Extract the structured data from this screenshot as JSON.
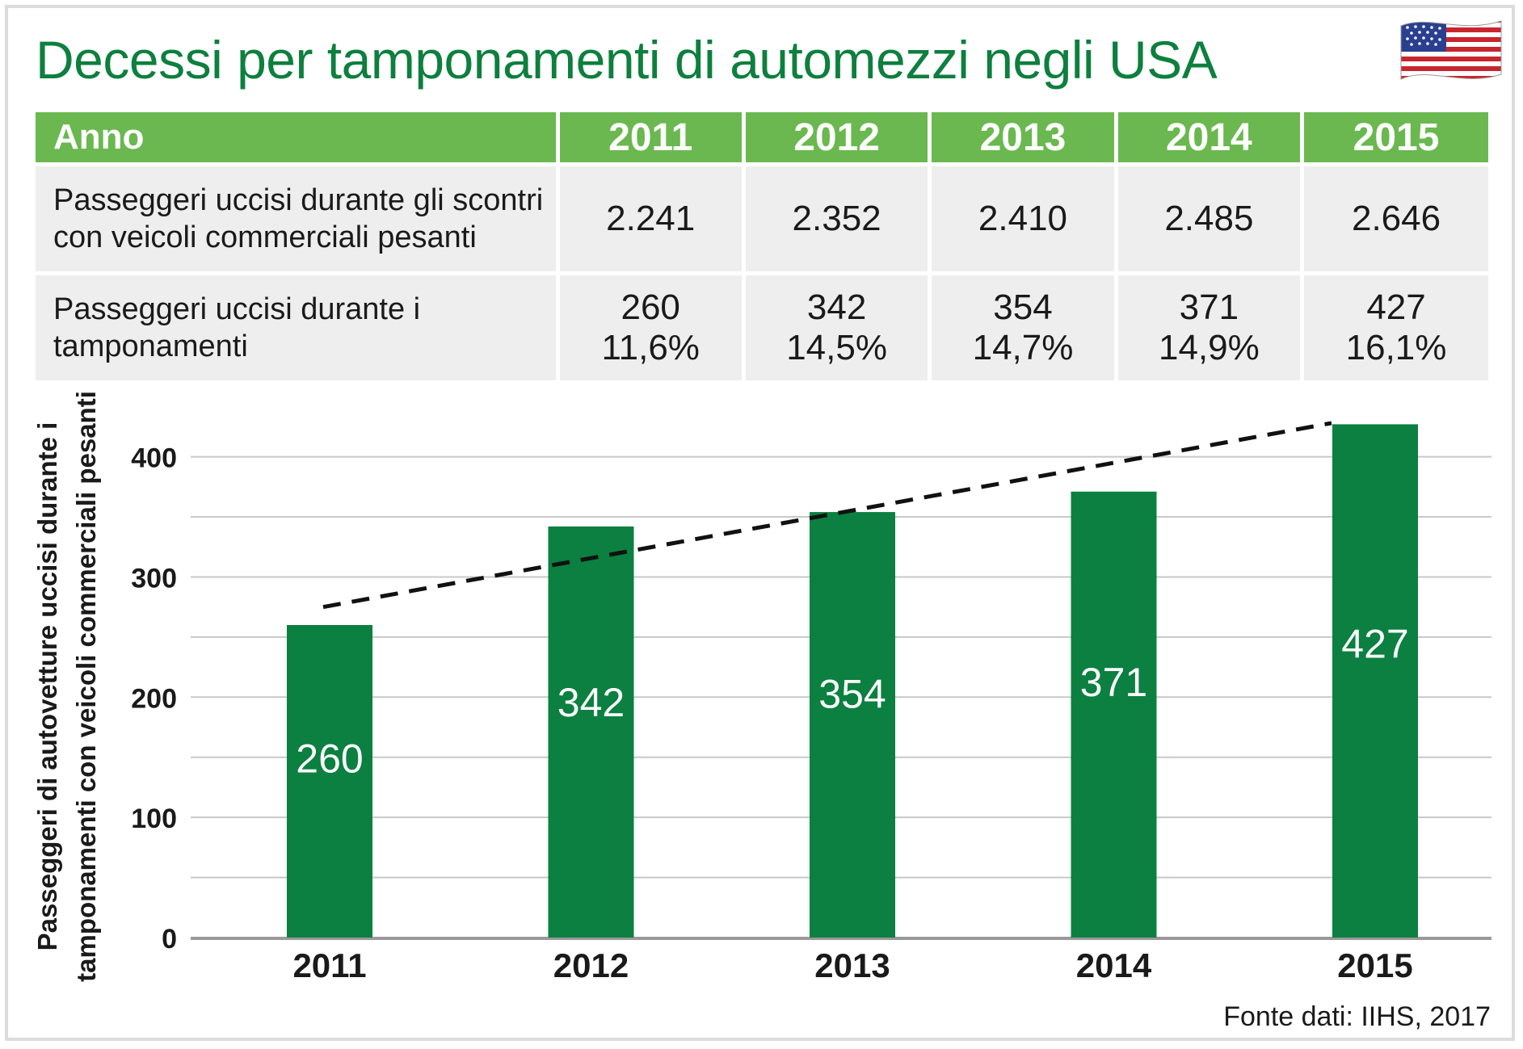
{
  "title": "Decessi per tamponamenti di automezzi negli USA",
  "source": "Fonte dati: IIHS, 2017",
  "flag_icon": "usa-flag-icon",
  "colors": {
    "title": "#0d7f3e",
    "table_header": "#6ab84f",
    "table_body": "#eeeeee",
    "bar": "#0b8040",
    "trend_line": "#111111"
  },
  "table": {
    "header_label": "Anno",
    "years": [
      "2011",
      "2012",
      "2013",
      "2014",
      "2015"
    ],
    "rows": [
      {
        "label_lines": [
          "Passeggeri uccisi durante gli scontri",
          "con veicoli commerciali pesanti"
        ],
        "cells": [
          [
            "2.241"
          ],
          [
            "2.352"
          ],
          [
            "2.410"
          ],
          [
            "2.485"
          ],
          [
            "2.646"
          ]
        ]
      },
      {
        "label_lines": [
          "Passeggeri uccisi durante i",
          "tamponamenti"
        ],
        "cells": [
          [
            "260",
            "11,6%"
          ],
          [
            "342",
            "14,5%"
          ],
          [
            "354",
            "14,7%"
          ],
          [
            "371",
            "14,9%"
          ],
          [
            "427",
            "16,1%"
          ]
        ]
      }
    ]
  },
  "chart_data": {
    "type": "bar",
    "categories": [
      "2011",
      "2012",
      "2013",
      "2014",
      "2015"
    ],
    "values": [
      260,
      342,
      354,
      371,
      427
    ],
    "data_labels": [
      "260",
      "342",
      "354",
      "371",
      "427"
    ],
    "ylabel_lines": [
      "Passeggeri di autovetture uccisi durante i",
      "tamponamenti con veicoli commerciali pesanti"
    ],
    "xlabel": "",
    "ylim": [
      0,
      400
    ],
    "yticks": [
      0,
      100,
      200,
      300,
      400
    ],
    "grid": true,
    "trend_line": {
      "style": "dashed",
      "start": 275,
      "end": 428
    }
  }
}
